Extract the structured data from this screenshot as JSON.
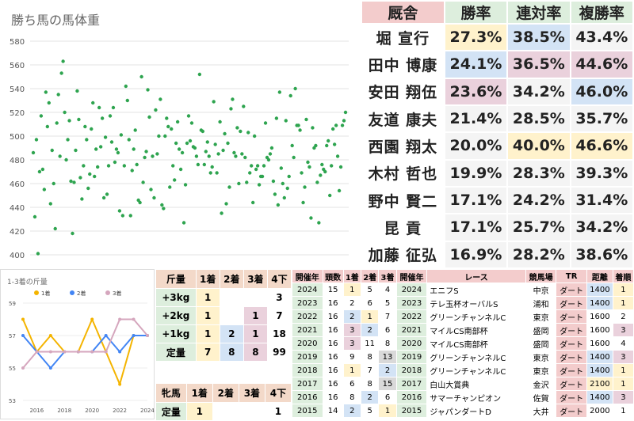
{
  "scatter": {
    "title": "勝ち馬の馬体重",
    "chart_data": {
      "type": "scatter",
      "title": "勝ち馬の馬体重",
      "ylim": [
        395,
        572
      ],
      "yticks": [
        400,
        420,
        440,
        460,
        480,
        500,
        520,
        540,
        560,
        580
      ],
      "grid": true,
      "color": "#2ea44f",
      "y": [
        486,
        432,
        497,
        401,
        470,
        517,
        472,
        455,
        537,
        508,
        528,
        443,
        488,
        460,
        422,
        511,
        535,
        483,
        553,
        563,
        520,
        480,
        497,
        513,
        462,
        418,
        461,
        488,
        538,
        514,
        465,
        447,
        475,
        508,
        497,
        456,
        468,
        506,
        528,
        466,
        489,
        474,
        524,
        491,
        515,
        448,
        499,
        451,
        475,
        517,
        495,
        524,
        478,
        489,
        486,
        437,
        501,
        433,
        475,
        542,
        530,
        497,
        433,
        471,
        489,
        505,
        476,
        446,
        444,
        550,
        461,
        482,
        487,
        539,
        516,
        455,
        483,
        448,
        522,
        485,
        500,
        531,
        442,
        439,
        500,
        515,
        508,
        457,
        506,
        475,
        463,
        494,
        512,
        489,
        472,
        486,
        427,
        459,
        494,
        517,
        496,
        511,
        491,
        490,
        483,
        476,
        552,
        505,
        504,
        476,
        487,
        495,
        483,
        469,
        474,
        529,
        493,
        469,
        485,
        512,
        435,
        488,
        502,
        443,
        494,
        457,
        523,
        531,
        486,
        483,
        507,
        460,
        504,
        485,
        525,
        482,
        461,
        503,
        469,
        475,
        444,
        500,
        472,
        475,
        459,
        466,
        466,
        475,
        511,
        482,
        480,
        485,
        490,
        462,
        451,
        515,
        442,
        537,
        473,
        460,
        448,
        513,
        456,
        466,
        534,
        492,
        482,
        540,
        509,
        509,
        505,
        469,
        444,
        457,
        514,
        478,
        474,
        431,
        507,
        490,
        492,
        461,
        427,
        467,
        476,
        472,
        470,
        492,
        496,
        450,
        475,
        506,
        493,
        509,
        483,
        454,
        474,
        509,
        513,
        520
      ]
    }
  },
  "trainers": {
    "headers": [
      "厩舎",
      "勝率",
      "連対率",
      "複勝率"
    ],
    "rows": [
      {
        "name": "堀 宣行",
        "win": "27.3%",
        "place2": "38.5%",
        "place3": "43.4%",
        "hl": [
          "yellow",
          "blue",
          ""
        ]
      },
      {
        "name": "田中 博康",
        "win": "24.1%",
        "place2": "36.5%",
        "place3": "44.6%",
        "hl": [
          "blue",
          "pink",
          "pink"
        ]
      },
      {
        "name": "安田 翔伍",
        "win": "23.6%",
        "place2": "34.2%",
        "place3": "46.0%",
        "hl": [
          "pink",
          "",
          "blue"
        ]
      },
      {
        "name": "友道 康夫",
        "win": "21.4%",
        "place2": "28.5%",
        "place3": "35.7%",
        "hl": [
          "",
          "",
          ""
        ]
      },
      {
        "name": "西園 翔太",
        "win": "20.0%",
        "place2": "40.0%",
        "place3": "46.6%",
        "hl": [
          "",
          "yellow",
          "yellow"
        ]
      },
      {
        "name": "木村 哲也",
        "win": "19.9%",
        "place2": "28.3%",
        "place3": "39.3%",
        "hl": [
          "",
          "",
          ""
        ]
      },
      {
        "name": "野中 賢二",
        "win": "17.1%",
        "place2": "24.2%",
        "place3": "31.4%",
        "hl": [
          "",
          "",
          ""
        ]
      },
      {
        "name": "昆 貢",
        "win": "17.1%",
        "place2": "25.7%",
        "place3": "34.2%",
        "hl": [
          "",
          "",
          ""
        ]
      },
      {
        "name": "加藤 征弘",
        "win": "16.9%",
        "place2": "28.2%",
        "place3": "38.6%",
        "hl": [
          "",
          "",
          ""
        ]
      }
    ]
  },
  "line_chart": {
    "title": "1-3着の斤量",
    "chart_data": {
      "type": "line",
      "title": "1-3着の斤量",
      "x": [
        2015,
        2016,
        2017,
        2018,
        2019,
        2020,
        2021,
        2022,
        2023,
        2024
      ],
      "xticks": [
        2016,
        2018,
        2020,
        2022,
        2024
      ],
      "yticks": [
        53,
        55,
        57,
        59
      ],
      "ylim": [
        53,
        59
      ],
      "series": [
        {
          "name": "1着",
          "color": "#f4b400",
          "values": [
            58,
            56,
            57,
            56,
            56,
            58,
            56,
            54,
            57,
            57
          ]
        },
        {
          "name": "2着",
          "color": "#4285f4",
          "values": [
            57,
            56,
            55,
            56,
            56,
            56,
            57,
            56,
            57,
            57
          ]
        },
        {
          "name": "3着",
          "color": "#d5a6bd",
          "values": [
            55,
            56,
            56,
            56,
            56,
            56,
            56,
            58,
            58,
            57
          ]
        }
      ]
    }
  },
  "kinryo": {
    "headers": [
      "斤量",
      "1着",
      "2着",
      "3着",
      "4下"
    ],
    "rows": [
      {
        "label": "+3kg",
        "c1": "1",
        "c2": "",
        "c3": "",
        "c4": "3",
        "hl": [
          "yellow",
          "",
          "",
          ""
        ]
      },
      {
        "label": "+2kg",
        "c1": "1",
        "c2": "",
        "c3": "1",
        "c4": "7",
        "hl": [
          "yellow",
          "",
          "pink",
          ""
        ]
      },
      {
        "label": "+1kg",
        "c1": "1",
        "c2": "2",
        "c3": "1",
        "c4": "18",
        "hl": [
          "yellow",
          "blue",
          "pink",
          ""
        ]
      },
      {
        "label": "定量",
        "c1": "7",
        "c2": "8",
        "c3": "8",
        "c4": "99",
        "hl": [
          "yellow",
          "blue",
          "pink",
          ""
        ]
      }
    ]
  },
  "hinba": {
    "headers": [
      "牝馬",
      "1着",
      "2着",
      "3着",
      "4下"
    ],
    "rows": [
      {
        "label": "定量",
        "c1": "1",
        "c2": "",
        "c3": "",
        "c4": "1",
        "hl": [
          "yellow",
          "",
          "",
          ""
        ]
      }
    ]
  },
  "races": {
    "headers": [
      "開催年",
      "頭数",
      "1着",
      "2着",
      "3着",
      "開催年",
      "レース",
      "競馬場",
      "TR",
      "距離",
      "着順"
    ],
    "rows": [
      {
        "y1": "2024",
        "n": "15",
        "a": "1",
        "b": "5",
        "c": "4",
        "y2": "2024",
        "race": "エニフS",
        "track": "中京",
        "tr": "ダート",
        "dist": "1400",
        "pos": "1",
        "hl": [
          "yellow",
          "",
          "",
          "",
          "blue",
          "yellow"
        ]
      },
      {
        "y1": "2023",
        "n": "16",
        "a": "2",
        "b": "6",
        "c": "5",
        "y2": "2023",
        "race": "テレ玉杯オーバルS",
        "track": "浦和",
        "tr": "ダート",
        "dist": "1400",
        "pos": "1",
        "hl": [
          "",
          "",
          "",
          "",
          "blue",
          "yellow"
        ]
      },
      {
        "y1": "2022",
        "n": "16",
        "a": "2",
        "b": "1",
        "c": "7",
        "y2": "2022",
        "race": "グリーンチャンネルC",
        "track": "東京",
        "tr": "ダート",
        "dist": "1600",
        "pos": "2",
        "hl": [
          "blue",
          "yellow",
          "",
          "",
          "",
          ""
        ]
      },
      {
        "y1": "2021",
        "n": "16",
        "a": "3",
        "b": "2",
        "c": "6",
        "y2": "2021",
        "race": "マイルCS南部杯",
        "track": "盛岡",
        "tr": "ダート",
        "dist": "1600",
        "pos": "3",
        "hl": [
          "pink",
          "blue",
          "",
          "",
          "",
          "pink"
        ]
      },
      {
        "y1": "2020",
        "n": "16",
        "a": "3",
        "b": "11",
        "c": "8",
        "y2": "2020",
        "race": "マイルCS南部杯",
        "track": "盛岡",
        "tr": "ダート",
        "dist": "1600",
        "pos": "4",
        "hl": [
          "pink",
          "",
          "",
          "",
          "",
          ""
        ]
      },
      {
        "y1": "2019",
        "n": "16",
        "a": "9",
        "b": "8",
        "c": "13",
        "y2": "2019",
        "race": "グリーンチャンネルC",
        "track": "東京",
        "tr": "ダート",
        "dist": "1400",
        "pos": "3",
        "hl": [
          "",
          "",
          "gray",
          "",
          "blue",
          "pink"
        ]
      },
      {
        "y1": "2018",
        "n": "16",
        "a": "1",
        "b": "7",
        "c": "2",
        "y2": "2018",
        "race": "グリーンチャンネルC",
        "track": "東京",
        "tr": "ダート",
        "dist": "1400",
        "pos": "1",
        "hl": [
          "yellow",
          "",
          "blue",
          "",
          "blue",
          "yellow"
        ]
      },
      {
        "y1": "2017",
        "n": "16",
        "a": "6",
        "b": "8",
        "c": "15",
        "y2": "2017",
        "race": "白山大賞典",
        "track": "金沢",
        "tr": "ダート",
        "dist": "2100",
        "pos": "1",
        "hl": [
          "",
          "",
          "gray",
          "",
          "yellow",
          "yellow"
        ]
      },
      {
        "y1": "2016",
        "n": "16",
        "a": "8",
        "b": "2",
        "c": "6",
        "y2": "2016",
        "race": "サマーチャンピオン",
        "track": "佐賀",
        "tr": "ダート",
        "dist": "1400",
        "pos": "3",
        "hl": [
          "",
          "blue",
          "",
          "",
          "blue",
          "pink"
        ]
      },
      {
        "y1": "2015",
        "n": "14",
        "a": "2",
        "b": "5",
        "c": "1",
        "y2": "2015",
        "race": "ジャパンダートD",
        "track": "大井",
        "tr": "ダート",
        "dist": "2000",
        "pos": "1",
        "hl": [
          "blue",
          "",
          "yellow",
          "",
          "",
          ""
        ]
      }
    ]
  }
}
